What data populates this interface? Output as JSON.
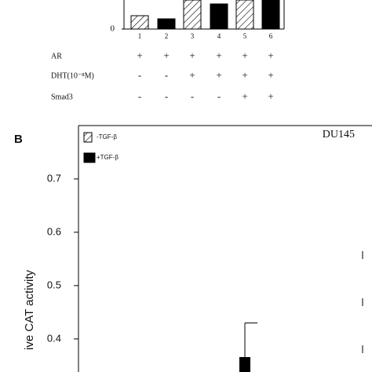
{
  "chart_data": [
    {
      "type": "bar",
      "categories": [
        "1",
        "2",
        "3",
        "4",
        "5",
        "6"
      ],
      "values": [
        17,
        13,
        37,
        32,
        37,
        37
      ],
      "patterns": [
        "hatch",
        "solid",
        "hatch",
        "solid",
        "hatch",
        "solid"
      ],
      "color": "#000000",
      "ylim": [
        0,
        37
      ],
      "yticks": [
        0
      ]
    },
    {
      "type": "bar",
      "panel": "B",
      "annotation": "DU145",
      "ylabel": "ive CAT activity",
      "categories": [
        null
      ],
      "series": [
        {
          "name": "-TGF-β",
          "color": "#ffffff",
          "pattern": "hatch",
          "values": [
            null
          ]
        },
        {
          "name": "+TGF-β",
          "color": "#000000",
          "pattern": "solid",
          "values": [
            0.366
          ],
          "errors": [
            0.064
          ]
        }
      ],
      "ylim": [
        0.338,
        0.8
      ],
      "yticks": [
        0.4,
        0.5,
        0.6,
        0.7
      ]
    }
  ],
  "conditions": [
    {
      "label": "AR",
      "marks": [
        "+",
        "+",
        "+",
        "+",
        "+",
        "+"
      ]
    },
    {
      "label": "DHT(10⁻⁸M)",
      "marks": [
        "-",
        "-",
        "+",
        "+",
        "+",
        "+"
      ]
    },
    {
      "label": "Smad3",
      "marks": [
        "-",
        "-",
        "-",
        "-",
        "+",
        "+"
      ]
    }
  ]
}
